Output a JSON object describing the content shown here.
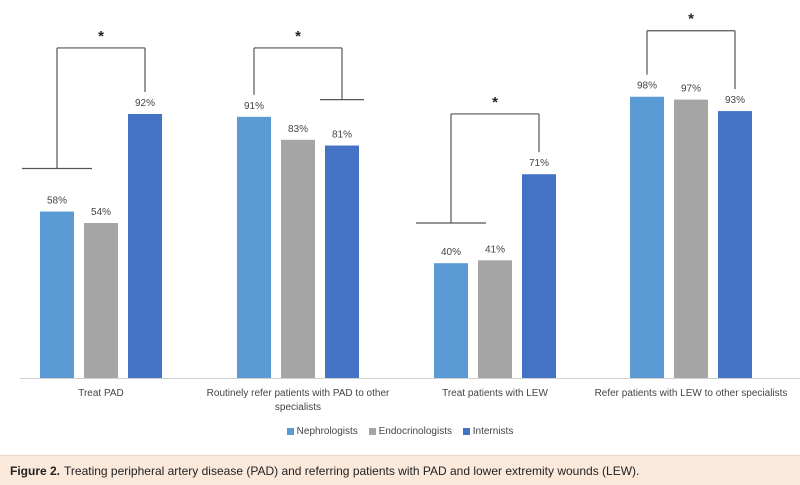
{
  "chart_data": {
    "type": "bar",
    "categories": [
      [
        "Treat PAD"
      ],
      [
        "Routinely refer patients with PAD to other",
        "specialists"
      ],
      [
        "Treat patients with LEW"
      ],
      [
        "Refer patients with LEW to other specialists"
      ]
    ],
    "series": [
      {
        "name": "Nephrologists",
        "color": "#5b9bd5",
        "values": [
          58,
          91,
          40,
          98
        ],
        "labels": [
          "58%",
          "91%",
          "40%",
          "98%"
        ]
      },
      {
        "name": "Endocrinologists",
        "color": "#a5a5a5",
        "values": [
          54,
          83,
          41,
          97
        ],
        "labels": [
          "54%",
          "83%",
          "41%",
          "97%"
        ]
      },
      {
        "name": "Internists",
        "color": "#4472c4",
        "values": [
          92,
          81,
          71,
          93
        ],
        "labels": [
          "92%",
          "81%",
          "71%",
          "93%"
        ]
      }
    ],
    "significance": [
      "*",
      "*",
      "*",
      "*"
    ],
    "ylim": [
      0,
      100
    ]
  },
  "legend": {
    "items": [
      {
        "label": "Nephrologists",
        "color": "#5b9bd5"
      },
      {
        "label": "Endocrinologists",
        "color": "#a5a5a5"
      },
      {
        "label": "Internists",
        "color": "#4472c4"
      }
    ]
  },
  "caption": {
    "label": "Figure 2.",
    "text": "Treating peripheral artery disease (PAD) and referring patients with PAD and lower extremity wounds (LEW)."
  }
}
